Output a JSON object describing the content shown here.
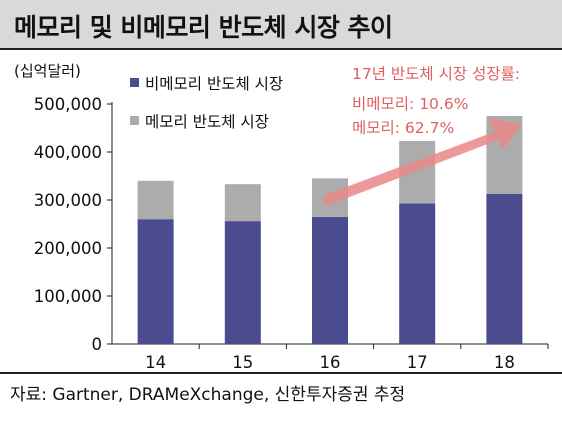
{
  "title": "메모리 및 비메모리 반도체 시장 추이",
  "unit_label": "(십억달러)",
  "source": "자료: Gartner, DRAMeXchange, 신한투자증권 추정",
  "annotation": {
    "heading": "17년 반도체 시장 성장률:",
    "line1": "비메모리: 10.6%",
    "line2": "메모리: 62.7%"
  },
  "colors": {
    "non_memory": "#4b4b8f",
    "memory": "#acacac",
    "arrow": "#e98787",
    "annotation_text": "#e06060"
  },
  "chart_data": {
    "type": "bar",
    "stacked": true,
    "categories": [
      "14",
      "15",
      "16",
      "17",
      "18"
    ],
    "series": [
      {
        "name": "비메모리 반도체 시장",
        "values": [
          260000,
          256000,
          265000,
          293000,
          313000
        ]
      },
      {
        "name": "메모리 반도체 시장",
        "values": [
          80000,
          77000,
          80000,
          130000,
          162000
        ]
      }
    ],
    "ylim": [
      0,
      500000
    ],
    "yticks": [
      0,
      100000,
      200000,
      300000,
      400000,
      500000
    ],
    "ytick_labels": [
      "0",
      "100,000",
      "200,000",
      "300,000",
      "400,000",
      "500,000"
    ],
    "xlabel": "",
    "ylabel": "",
    "legend_position": "top-left",
    "grid": false
  }
}
